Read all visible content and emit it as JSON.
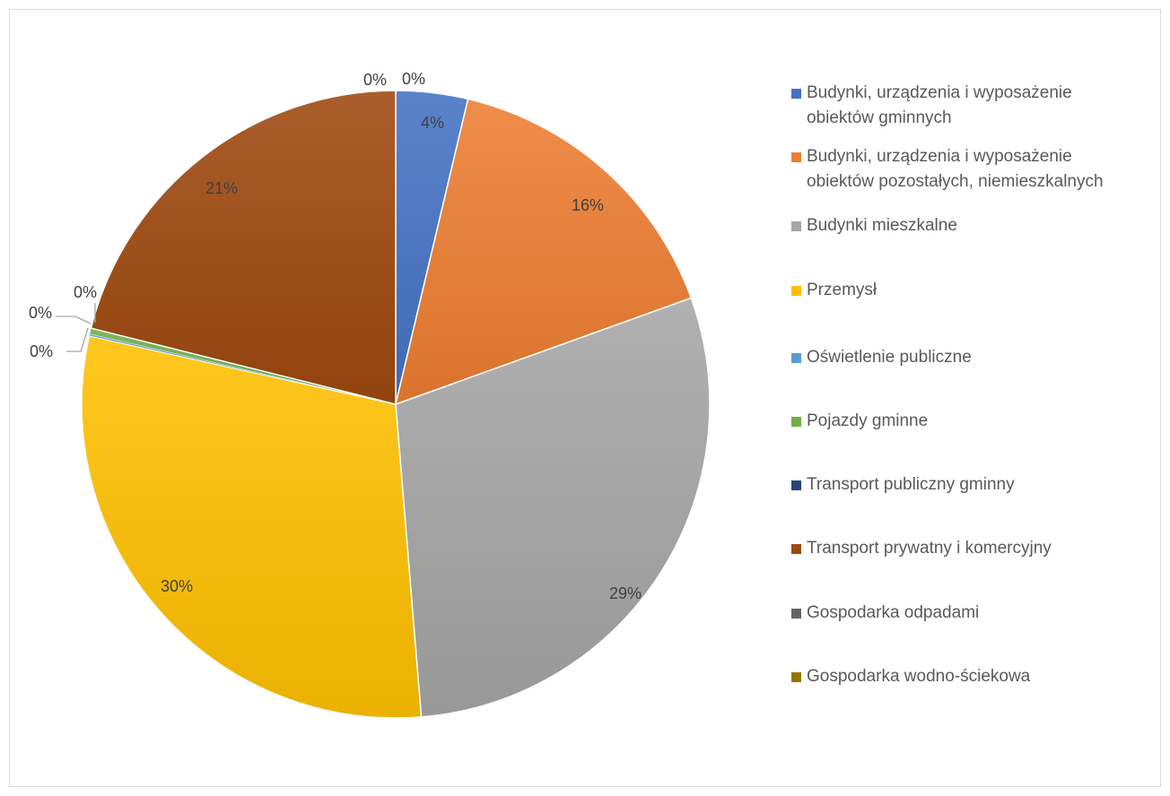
{
  "chart_data": {
    "type": "pie",
    "title": "",
    "start_angle_deg": 0,
    "direction": "clockwise",
    "legend_position": "right",
    "slices": [
      {
        "name": "Budynki, urządzenia i wyposażenie obiektów gminnych",
        "value": 3.7,
        "label": "4%",
        "color": "#4472c4"
      },
      {
        "name": "Budynki, urządzenia i wyposażenie obiektów pozostałych, niemieszkalnych",
        "value": 15.8,
        "label": "16%",
        "color": "#ed7d31"
      },
      {
        "name": "Budynki mieszkalne",
        "value": 29.2,
        "label": "29%",
        "color": "#a5a5a5"
      },
      {
        "name": "Przemysł",
        "value": 29.8,
        "label": "30%",
        "color": "#ffc000"
      },
      {
        "name": "Oświetlenie publiczne",
        "value": 0.1,
        "label": "0%",
        "color": "#5b9bd5"
      },
      {
        "name": "Pojazdy gminne",
        "value": 0.3,
        "label": "0%",
        "color": "#70ad47"
      },
      {
        "name": "Transport publiczny gminny",
        "value": 0.0,
        "label": "0%",
        "color": "#264478"
      },
      {
        "name": "Transport prywatny i komercyjny",
        "value": 21.1,
        "label": "21%",
        "color": "#9e480e"
      },
      {
        "name": "Gospodarka odpadami",
        "value": 0.0,
        "label": "0%",
        "color": "#636363"
      },
      {
        "name": "Gospodarka wodno-ściekowa",
        "value": 0.0,
        "label": "0%",
        "color": "#997300"
      }
    ]
  }
}
